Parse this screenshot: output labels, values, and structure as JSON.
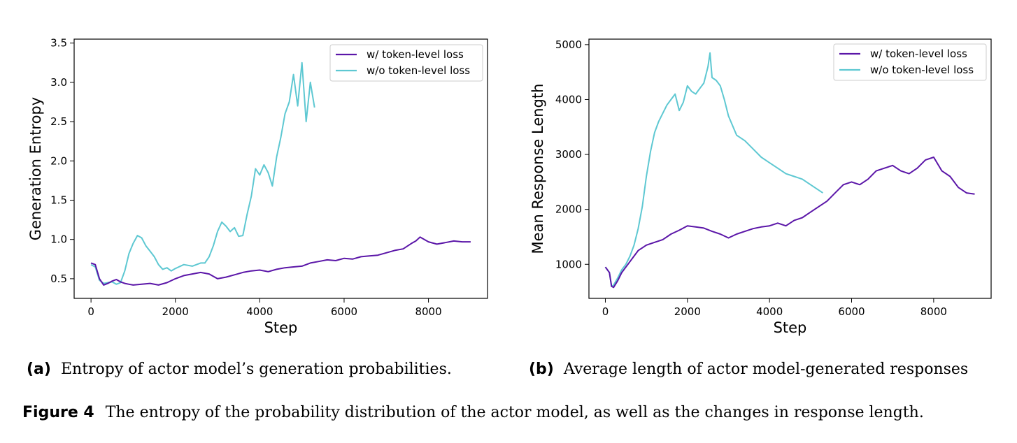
{
  "colors": {
    "with_token": "#5b16a8",
    "without_token": "#5ec8d2"
  },
  "chart_data": [
    {
      "type": "line",
      "xlabel": "Step",
      "ylabel": "Generation Entropy",
      "xlim": [
        -400,
        9400
      ],
      "ylim": [
        0.25,
        3.55
      ],
      "xticks": [
        0,
        2000,
        4000,
        6000,
        8000
      ],
      "xtick_labels": [
        "0",
        "2000",
        "4000",
        "6000",
        "8000"
      ],
      "yticks": [
        0.5,
        1.0,
        1.5,
        2.0,
        2.5,
        3.0,
        3.5
      ],
      "ytick_labels": [
        "0.5",
        "1.0",
        "1.5",
        "2.0",
        "2.5",
        "3.0",
        "3.5"
      ],
      "legend_position": "top-right",
      "series": [
        {
          "name": "w/ token-level loss",
          "x": [
            0,
            100,
            200,
            300,
            400,
            500,
            600,
            700,
            800,
            900,
            1000,
            1200,
            1400,
            1600,
            1800,
            2000,
            2200,
            2400,
            2600,
            2800,
            3000,
            3200,
            3400,
            3600,
            3800,
            4000,
            4200,
            4400,
            4600,
            4800,
            5000,
            5200,
            5400,
            5600,
            5800,
            6000,
            6200,
            6400,
            6600,
            6800,
            7000,
            7200,
            7400,
            7600,
            7700,
            7800,
            8000,
            8200,
            8400,
            8600,
            8800,
            9000
          ],
          "y": [
            0.7,
            0.68,
            0.5,
            0.42,
            0.44,
            0.47,
            0.49,
            0.46,
            0.44,
            0.43,
            0.42,
            0.43,
            0.44,
            0.42,
            0.45,
            0.5,
            0.54,
            0.56,
            0.58,
            0.56,
            0.5,
            0.52,
            0.55,
            0.58,
            0.6,
            0.61,
            0.59,
            0.62,
            0.64,
            0.65,
            0.66,
            0.7,
            0.72,
            0.74,
            0.73,
            0.76,
            0.75,
            0.78,
            0.79,
            0.8,
            0.83,
            0.86,
            0.88,
            0.95,
            0.98,
            1.03,
            0.97,
            0.94,
            0.96,
            0.98,
            0.97,
            0.97
          ]
        },
        {
          "name": "w/o token-level loss",
          "x": [
            0,
            100,
            200,
            300,
            400,
            500,
            600,
            700,
            800,
            900,
            1000,
            1100,
            1200,
            1300,
            1400,
            1500,
            1600,
            1700,
            1800,
            1900,
            2000,
            2200,
            2400,
            2600,
            2700,
            2800,
            2900,
            3000,
            3100,
            3200,
            3300,
            3400,
            3500,
            3600,
            3700,
            3800,
            3900,
            4000,
            4100,
            4200,
            4300,
            4400,
            4500,
            4600,
            4700,
            4800,
            4900,
            5000,
            5100,
            5200,
            5300
          ],
          "y": [
            0.68,
            0.65,
            0.48,
            0.44,
            0.45,
            0.46,
            0.43,
            0.45,
            0.6,
            0.82,
            0.95,
            1.05,
            1.02,
            0.92,
            0.85,
            0.78,
            0.68,
            0.62,
            0.64,
            0.6,
            0.63,
            0.68,
            0.66,
            0.7,
            0.7,
            0.78,
            0.92,
            1.1,
            1.22,
            1.17,
            1.1,
            1.15,
            1.04,
            1.05,
            1.32,
            1.55,
            1.9,
            1.82,
            1.95,
            1.85,
            1.68,
            2.05,
            2.3,
            2.6,
            2.75,
            3.1,
            2.7,
            3.25,
            2.5,
            3.0,
            2.68
          ]
        }
      ]
    },
    {
      "type": "line",
      "xlabel": "Step",
      "ylabel": "Mean Response Length",
      "xlim": [
        -400,
        9400
      ],
      "ylim": [
        380,
        5100
      ],
      "xticks": [
        0,
        2000,
        4000,
        6000,
        8000
      ],
      "xtick_labels": [
        "0",
        "2000",
        "4000",
        "6000",
        "8000"
      ],
      "yticks": [
        1000,
        2000,
        3000,
        4000,
        5000
      ],
      "ytick_labels": [
        "1000",
        "2000",
        "3000",
        "4000",
        "5000"
      ],
      "legend_position": "top-right",
      "series": [
        {
          "name": "w/ token-level loss",
          "x": [
            0,
            100,
            150,
            200,
            300,
            400,
            500,
            600,
            700,
            800,
            900,
            1000,
            1200,
            1400,
            1600,
            1800,
            2000,
            2200,
            2400,
            2600,
            2800,
            3000,
            3200,
            3400,
            3600,
            3800,
            4000,
            4200,
            4400,
            4600,
            4800,
            5000,
            5200,
            5400,
            5600,
            5800,
            6000,
            6200,
            6400,
            6600,
            6800,
            7000,
            7200,
            7400,
            7600,
            7800,
            8000,
            8200,
            8400,
            8600,
            8800,
            9000
          ],
          "y": [
            950,
            850,
            600,
            580,
            700,
            850,
            950,
            1050,
            1150,
            1250,
            1300,
            1350,
            1400,
            1450,
            1550,
            1620,
            1700,
            1680,
            1660,
            1600,
            1550,
            1480,
            1550,
            1600,
            1650,
            1680,
            1700,
            1750,
            1700,
            1800,
            1850,
            1950,
            2050,
            2150,
            2300,
            2450,
            2500,
            2450,
            2550,
            2700,
            2750,
            2800,
            2700,
            2650,
            2750,
            2900,
            2950,
            2700,
            2600,
            2400,
            2300,
            2280
          ]
        },
        {
          "name": "w/o token-level loss",
          "x": [
            0,
            100,
            150,
            200,
            300,
            400,
            500,
            600,
            700,
            800,
            900,
            1000,
            1100,
            1200,
            1300,
            1400,
            1500,
            1600,
            1700,
            1800,
            1900,
            2000,
            2100,
            2200,
            2300,
            2400,
            2500,
            2550,
            2600,
            2700,
            2800,
            2900,
            3000,
            3200,
            3400,
            3600,
            3800,
            4000,
            4200,
            4400,
            4600,
            4800,
            5000,
            5200,
            5300
          ],
          "y": [
            950,
            850,
            600,
            620,
            750,
            900,
            1000,
            1150,
            1350,
            1650,
            2050,
            2600,
            3050,
            3400,
            3600,
            3750,
            3900,
            4000,
            4100,
            3800,
            3950,
            4250,
            4150,
            4100,
            4200,
            4300,
            4600,
            4850,
            4400,
            4350,
            4250,
            4000,
            3700,
            3350,
            3250,
            3100,
            2950,
            2850,
            2750,
            2650,
            2600,
            2550,
            2450,
            2350,
            2300
          ]
        }
      ]
    }
  ],
  "captions": {
    "a_tag": "(a)",
    "a_text": "Entropy of actor model’s generation probabilities.",
    "b_tag": "(b)",
    "b_text": "Average length of actor model-generated responses",
    "fig_tag": "Figure 4",
    "fig_text": "The entropy of the probability distribution of the actor model, as well as the changes in response length."
  }
}
